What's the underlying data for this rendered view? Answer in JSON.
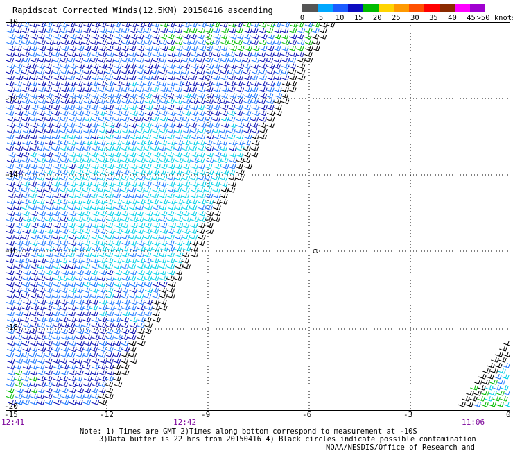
{
  "title": "Rapidscat Corrected Winds(12.5KM) 20150416 ascending",
  "legend": {
    "unit_label": ">50 knots",
    "ticks": [
      "0",
      "5",
      "10",
      "15",
      "20",
      "25",
      "30",
      "35",
      "40",
      "45"
    ],
    "colors": [
      "#555555",
      "#00a8ff",
      "#1c5cff",
      "#0c0cc0",
      "#00bb00",
      "#ffd400",
      "#ff9900",
      "#ff5000",
      "#ff0000",
      "#8b2a00",
      "#ff00ff",
      "#a000d0"
    ]
  },
  "axes": {
    "lat_labels": [
      "-10",
      "-12",
      "-14",
      "-16",
      "-18",
      "-20"
    ],
    "lon_labels": [
      "-15",
      "-12",
      "-9",
      "-6",
      "-3",
      "0"
    ]
  },
  "times": {
    "left": "12:41",
    "middle": "12:42",
    "right": "11:06"
  },
  "notes": {
    "line1": "Note: 1) Times are GMT 2)Times along bottom correspond to measurement at -10S",
    "line2": "3)Data buffer is 22 hrs from 20150416 4) Black circles indicate possible contamination"
  },
  "credit": "NOAA/NESDIS/Office of Research and Applications",
  "colors": {
    "calm": "#000000",
    "light": "#00d0e8",
    "moderate": "#1e78ff",
    "fresh": "#0a10b4",
    "strong": "#00bb00",
    "time_label": "#7a0099"
  },
  "map": {
    "lat_range": [
      -20,
      -10
    ],
    "lon_range": [
      -15,
      0
    ]
  }
}
